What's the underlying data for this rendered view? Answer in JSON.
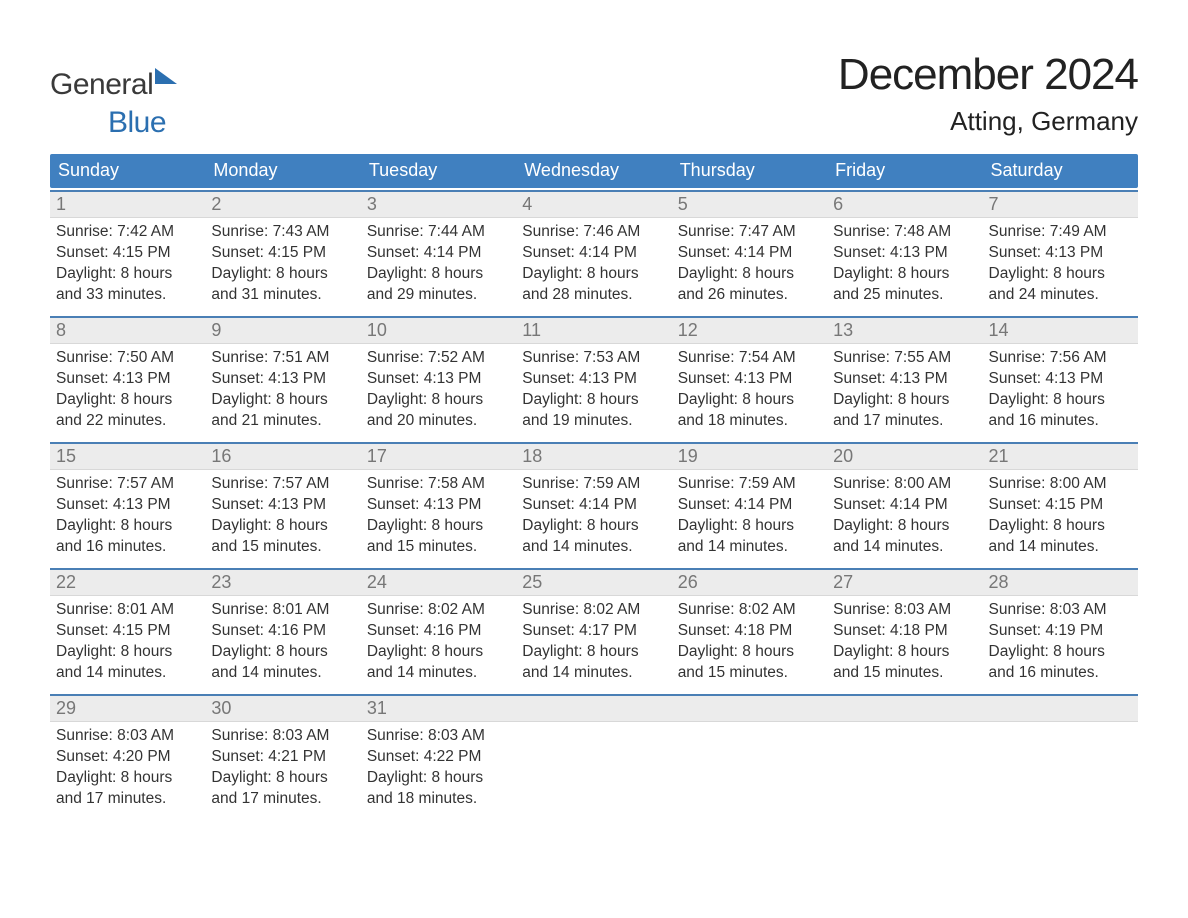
{
  "brand": {
    "word1": "General",
    "word2": "Blue"
  },
  "title": "December 2024",
  "location": "Atting, Germany",
  "colors": {
    "header_bg": "#4080c0",
    "header_text": "#ffffff",
    "week_border": "#4a7fb5",
    "daynum_bg": "#ececec",
    "daynum_text": "#777777",
    "body_text": "#333333",
    "brand_blue": "#2b6fb0",
    "page_bg": "#ffffff"
  },
  "typography": {
    "title_fontsize": 44,
    "location_fontsize": 26,
    "header_fontsize": 18,
    "daynum_fontsize": 18,
    "body_fontsize": 15.5,
    "logo_fontsize": 30
  },
  "day_labels": [
    "Sunday",
    "Monday",
    "Tuesday",
    "Wednesday",
    "Thursday",
    "Friday",
    "Saturday"
  ],
  "weeks": [
    [
      {
        "n": "1",
        "sunrise": "Sunrise: 7:42 AM",
        "sunset": "Sunset: 4:15 PM",
        "d1": "Daylight: 8 hours",
        "d2": "and 33 minutes."
      },
      {
        "n": "2",
        "sunrise": "Sunrise: 7:43 AM",
        "sunset": "Sunset: 4:15 PM",
        "d1": "Daylight: 8 hours",
        "d2": "and 31 minutes."
      },
      {
        "n": "3",
        "sunrise": "Sunrise: 7:44 AM",
        "sunset": "Sunset: 4:14 PM",
        "d1": "Daylight: 8 hours",
        "d2": "and 29 minutes."
      },
      {
        "n": "4",
        "sunrise": "Sunrise: 7:46 AM",
        "sunset": "Sunset: 4:14 PM",
        "d1": "Daylight: 8 hours",
        "d2": "and 28 minutes."
      },
      {
        "n": "5",
        "sunrise": "Sunrise: 7:47 AM",
        "sunset": "Sunset: 4:14 PM",
        "d1": "Daylight: 8 hours",
        "d2": "and 26 minutes."
      },
      {
        "n": "6",
        "sunrise": "Sunrise: 7:48 AM",
        "sunset": "Sunset: 4:13 PM",
        "d1": "Daylight: 8 hours",
        "d2": "and 25 minutes."
      },
      {
        "n": "7",
        "sunrise": "Sunrise: 7:49 AM",
        "sunset": "Sunset: 4:13 PM",
        "d1": "Daylight: 8 hours",
        "d2": "and 24 minutes."
      }
    ],
    [
      {
        "n": "8",
        "sunrise": "Sunrise: 7:50 AM",
        "sunset": "Sunset: 4:13 PM",
        "d1": "Daylight: 8 hours",
        "d2": "and 22 minutes."
      },
      {
        "n": "9",
        "sunrise": "Sunrise: 7:51 AM",
        "sunset": "Sunset: 4:13 PM",
        "d1": "Daylight: 8 hours",
        "d2": "and 21 minutes."
      },
      {
        "n": "10",
        "sunrise": "Sunrise: 7:52 AM",
        "sunset": "Sunset: 4:13 PM",
        "d1": "Daylight: 8 hours",
        "d2": "and 20 minutes."
      },
      {
        "n": "11",
        "sunrise": "Sunrise: 7:53 AM",
        "sunset": "Sunset: 4:13 PM",
        "d1": "Daylight: 8 hours",
        "d2": "and 19 minutes."
      },
      {
        "n": "12",
        "sunrise": "Sunrise: 7:54 AM",
        "sunset": "Sunset: 4:13 PM",
        "d1": "Daylight: 8 hours",
        "d2": "and 18 minutes."
      },
      {
        "n": "13",
        "sunrise": "Sunrise: 7:55 AM",
        "sunset": "Sunset: 4:13 PM",
        "d1": "Daylight: 8 hours",
        "d2": "and 17 minutes."
      },
      {
        "n": "14",
        "sunrise": "Sunrise: 7:56 AM",
        "sunset": "Sunset: 4:13 PM",
        "d1": "Daylight: 8 hours",
        "d2": "and 16 minutes."
      }
    ],
    [
      {
        "n": "15",
        "sunrise": "Sunrise: 7:57 AM",
        "sunset": "Sunset: 4:13 PM",
        "d1": "Daylight: 8 hours",
        "d2": "and 16 minutes."
      },
      {
        "n": "16",
        "sunrise": "Sunrise: 7:57 AM",
        "sunset": "Sunset: 4:13 PM",
        "d1": "Daylight: 8 hours",
        "d2": "and 15 minutes."
      },
      {
        "n": "17",
        "sunrise": "Sunrise: 7:58 AM",
        "sunset": "Sunset: 4:13 PM",
        "d1": "Daylight: 8 hours",
        "d2": "and 15 minutes."
      },
      {
        "n": "18",
        "sunrise": "Sunrise: 7:59 AM",
        "sunset": "Sunset: 4:14 PM",
        "d1": "Daylight: 8 hours",
        "d2": "and 14 minutes."
      },
      {
        "n": "19",
        "sunrise": "Sunrise: 7:59 AM",
        "sunset": "Sunset: 4:14 PM",
        "d1": "Daylight: 8 hours",
        "d2": "and 14 minutes."
      },
      {
        "n": "20",
        "sunrise": "Sunrise: 8:00 AM",
        "sunset": "Sunset: 4:14 PM",
        "d1": "Daylight: 8 hours",
        "d2": "and 14 minutes."
      },
      {
        "n": "21",
        "sunrise": "Sunrise: 8:00 AM",
        "sunset": "Sunset: 4:15 PM",
        "d1": "Daylight: 8 hours",
        "d2": "and 14 minutes."
      }
    ],
    [
      {
        "n": "22",
        "sunrise": "Sunrise: 8:01 AM",
        "sunset": "Sunset: 4:15 PM",
        "d1": "Daylight: 8 hours",
        "d2": "and 14 minutes."
      },
      {
        "n": "23",
        "sunrise": "Sunrise: 8:01 AM",
        "sunset": "Sunset: 4:16 PM",
        "d1": "Daylight: 8 hours",
        "d2": "and 14 minutes."
      },
      {
        "n": "24",
        "sunrise": "Sunrise: 8:02 AM",
        "sunset": "Sunset: 4:16 PM",
        "d1": "Daylight: 8 hours",
        "d2": "and 14 minutes."
      },
      {
        "n": "25",
        "sunrise": "Sunrise: 8:02 AM",
        "sunset": "Sunset: 4:17 PM",
        "d1": "Daylight: 8 hours",
        "d2": "and 14 minutes."
      },
      {
        "n": "26",
        "sunrise": "Sunrise: 8:02 AM",
        "sunset": "Sunset: 4:18 PM",
        "d1": "Daylight: 8 hours",
        "d2": "and 15 minutes."
      },
      {
        "n": "27",
        "sunrise": "Sunrise: 8:03 AM",
        "sunset": "Sunset: 4:18 PM",
        "d1": "Daylight: 8 hours",
        "d2": "and 15 minutes."
      },
      {
        "n": "28",
        "sunrise": "Sunrise: 8:03 AM",
        "sunset": "Sunset: 4:19 PM",
        "d1": "Daylight: 8 hours",
        "d2": "and 16 minutes."
      }
    ],
    [
      {
        "n": "29",
        "sunrise": "Sunrise: 8:03 AM",
        "sunset": "Sunset: 4:20 PM",
        "d1": "Daylight: 8 hours",
        "d2": "and 17 minutes."
      },
      {
        "n": "30",
        "sunrise": "Sunrise: 8:03 AM",
        "sunset": "Sunset: 4:21 PM",
        "d1": "Daylight: 8 hours",
        "d2": "and 17 minutes."
      },
      {
        "n": "31",
        "sunrise": "Sunrise: 8:03 AM",
        "sunset": "Sunset: 4:22 PM",
        "d1": "Daylight: 8 hours",
        "d2": "and 18 minutes."
      },
      {
        "empty": true
      },
      {
        "empty": true
      },
      {
        "empty": true
      },
      {
        "empty": true
      }
    ]
  ]
}
